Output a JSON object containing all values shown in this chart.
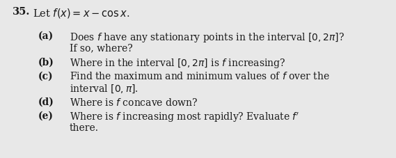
{
  "background_color": "#e8e8e8",
  "text_color": "#1a1a1a",
  "number": "35.",
  "intro": "Let $f(x) = x - \\cos x$.",
  "parts": [
    {
      "label": "(a)",
      "lines": [
        "Does $f$ have any stationary points in the interval $[0, 2\\pi]$?",
        "If so, where?"
      ]
    },
    {
      "label": "(b)",
      "lines": [
        "Where in the interval $[0, 2\\pi]$ is $f$ increasing?"
      ]
    },
    {
      "label": "(c)",
      "lines": [
        "Find the maximum and minimum values of $f$ over the",
        "interval $[0, \\pi]$."
      ]
    },
    {
      "label": "(d)",
      "lines": [
        "Where is $f$ concave down?"
      ]
    },
    {
      "label": "(e)",
      "lines": [
        "Where is $f$ increasing most rapidly? Evaluate $f'$",
        "there."
      ]
    }
  ],
  "fig_width": 5.69,
  "fig_height": 2.28,
  "dpi": 100,
  "font_size_intro": 10.5,
  "font_size_number": 10.5,
  "font_size_parts": 10.0
}
